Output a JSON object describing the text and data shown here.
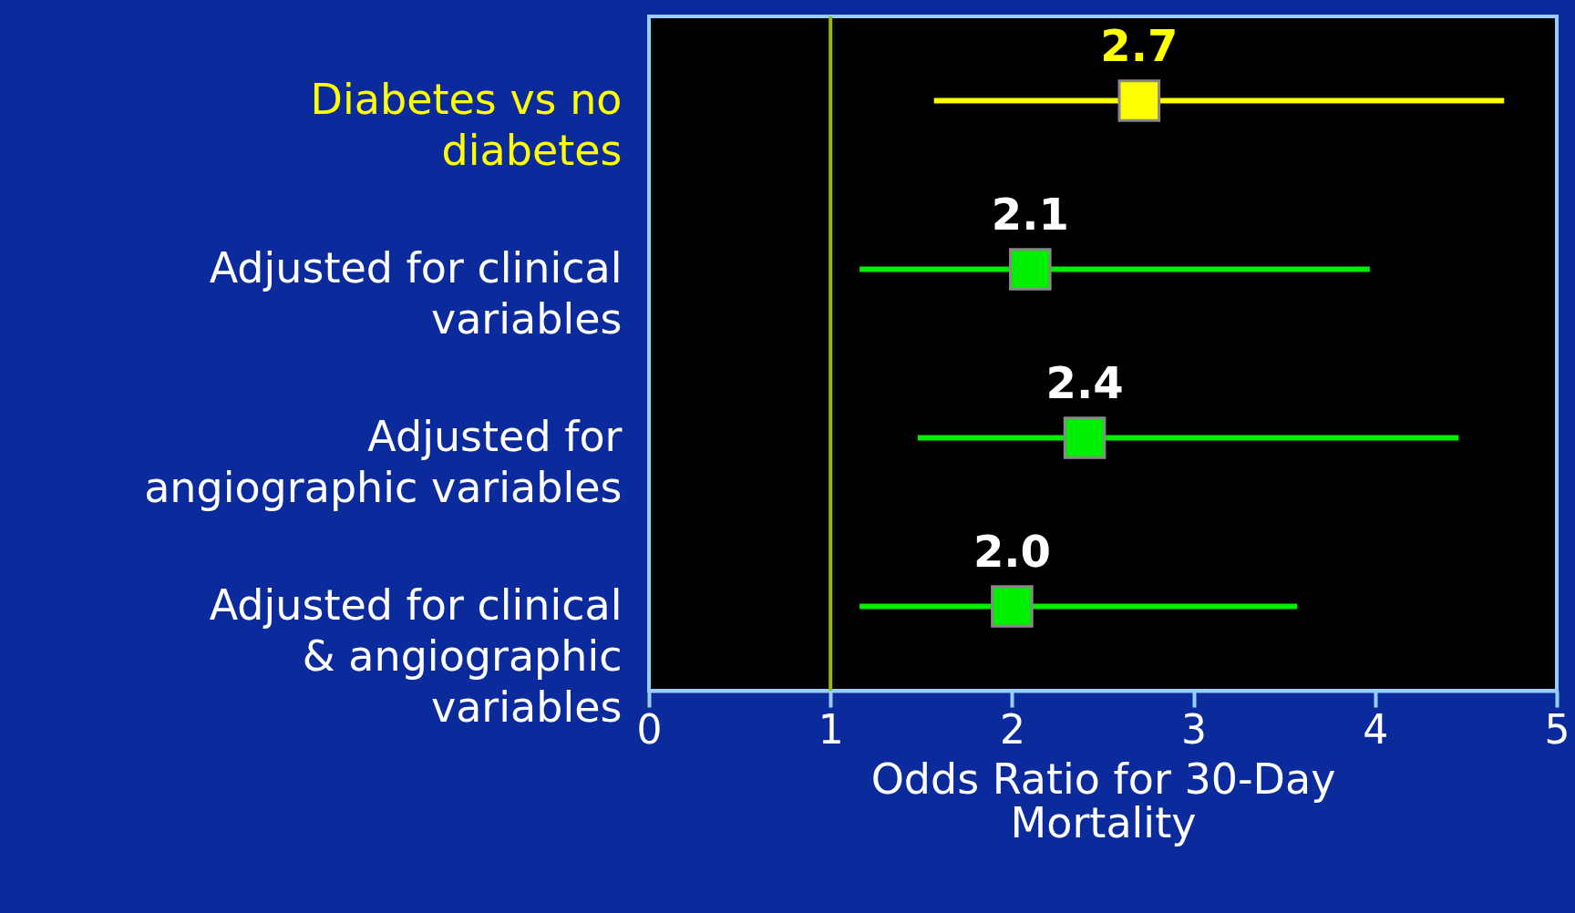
{
  "chart_data": {
    "type": "scatter",
    "orientation": "horizontal",
    "categories": [
      "Diabetes vs no diabetes",
      "Adjusted for clinical variables",
      "Adjusted for angiographic variables",
      "Adjusted for clinical & angiographic variables"
    ],
    "values": [
      2.7,
      2.1,
      2.4,
      2.0
    ],
    "errors": [
      [
        1.57,
        4.71
      ],
      [
        1.16,
        3.97
      ],
      [
        1.48,
        4.46
      ],
      [
        1.16,
        3.57
      ]
    ],
    "colors": [
      "#ffff00",
      "#00ee00",
      "#00ee00",
      "#00ee00"
    ],
    "value_labels": [
      "2.7",
      "2.1",
      "2.4",
      "2.0"
    ],
    "xlabel": "Odds Ratio for 30-Day Mortality",
    "xlim": [
      0,
      5
    ],
    "xticks": [
      0,
      1,
      2,
      3,
      4,
      5
    ],
    "ref_lines": [
      {
        "axis": "x",
        "value": 1,
        "label": null,
        "color": "#99bb00"
      }
    ],
    "marker": "square",
    "grid": false,
    "legend": false
  }
}
